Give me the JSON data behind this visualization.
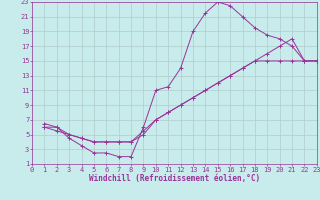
{
  "xlabel": "Windchill (Refroidissement éolien,°C)",
  "bg_color": "#c8ecec",
  "grid_color": "#b0cccc",
  "line_color": "#993399",
  "marker": "+",
  "xlim": [
    0,
    23
  ],
  "ylim": [
    1,
    23
  ],
  "xticks": [
    0,
    1,
    2,
    3,
    4,
    5,
    6,
    7,
    8,
    9,
    10,
    11,
    12,
    13,
    14,
    15,
    16,
    17,
    18,
    19,
    20,
    21,
    22,
    23
  ],
  "yticks": [
    1,
    3,
    5,
    7,
    9,
    11,
    13,
    15,
    17,
    19,
    21,
    23
  ],
  "series1_x": [
    1,
    2,
    3,
    4,
    5,
    6,
    7,
    8,
    9,
    10,
    11,
    12,
    13,
    14,
    15,
    16,
    17,
    18,
    19,
    20,
    21,
    22,
    23
  ],
  "series1_y": [
    6,
    6,
    4.5,
    3.5,
    2.5,
    2.5,
    2,
    2,
    6,
    11,
    11.5,
    14,
    19,
    21.5,
    23,
    22.5,
    21,
    19.5,
    18.5,
    18,
    17,
    15,
    15
  ],
  "series2_x": [
    1,
    2,
    3,
    4,
    5,
    6,
    7,
    8,
    9,
    10,
    11,
    12,
    13,
    14,
    15,
    16,
    17,
    18,
    19,
    20,
    21,
    22,
    23
  ],
  "series2_y": [
    6,
    5.5,
    5,
    4.5,
    4,
    4,
    4,
    4,
    5.5,
    7,
    8,
    9,
    10,
    11,
    12,
    13,
    14,
    15,
    16,
    17,
    18,
    15,
    15
  ],
  "series3_x": [
    1,
    2,
    3,
    4,
    5,
    6,
    7,
    8,
    9,
    10,
    11,
    12,
    13,
    14,
    15,
    16,
    17,
    18,
    19,
    20,
    21,
    22,
    23
  ],
  "series3_y": [
    6.5,
    6,
    5,
    4.5,
    4,
    4,
    4,
    4,
    5,
    7,
    8,
    9,
    10,
    11,
    12,
    13,
    14,
    15,
    15,
    15,
    15,
    15,
    15
  ],
  "tick_fontsize": 5,
  "xlabel_fontsize": 5.5,
  "lw": 0.7,
  "ms": 2.5
}
